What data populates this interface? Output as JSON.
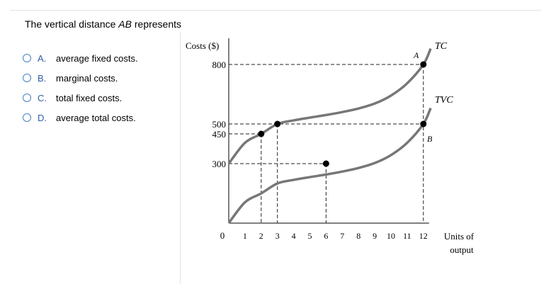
{
  "question": {
    "prefix": "The vertical distance ",
    "italic": "AB",
    "suffix": " represents"
  },
  "options": [
    {
      "letter": "A.",
      "text": "average fixed costs."
    },
    {
      "letter": "B.",
      "text": "marginal costs."
    },
    {
      "letter": "C.",
      "text": "total fixed costs."
    },
    {
      "letter": "D.",
      "text": "average total costs."
    }
  ],
  "colors": {
    "accent": "#4a7fc1",
    "option_letter": "#2d5fa6",
    "curve": "#777777"
  },
  "chart_data": {
    "type": "line",
    "ylabel": "Costs ($)",
    "xlabel_line1": "Units of",
    "xlabel_line2": "output",
    "origin_label": "0",
    "x_ticks": [
      "1",
      "2",
      "3",
      "4",
      "5",
      "6",
      "7",
      "8",
      "9",
      "10",
      "11",
      "12"
    ],
    "y_tick_labels": [
      "300",
      "450",
      "500",
      "800"
    ],
    "series": [
      {
        "name": "TC",
        "x": [
          0,
          1,
          2,
          3,
          4,
          5,
          6,
          7,
          8,
          9,
          10,
          11,
          12
        ],
        "y": [
          300,
          405,
          450,
          500,
          518,
          532,
          545,
          560,
          578,
          603,
          643,
          705,
          800
        ]
      },
      {
        "name": "TVC",
        "x": [
          0,
          1,
          2,
          3,
          4,
          5,
          6,
          7,
          8,
          9,
          10,
          11,
          12
        ],
        "y": [
          0,
          105,
          150,
          200,
          218,
          232,
          245,
          260,
          278,
          303,
          343,
          405,
          500
        ]
      }
    ],
    "point_labels": {
      "A": "A",
      "B": "B"
    },
    "marked_points": [
      [
        2,
        450
      ],
      [
        3,
        500
      ],
      [
        6,
        300
      ],
      [
        12,
        800
      ],
      [
        12,
        500
      ]
    ]
  }
}
